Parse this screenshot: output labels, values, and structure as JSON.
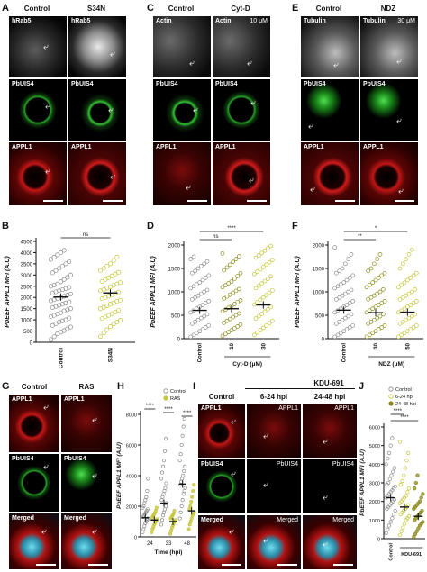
{
  "panels": {
    "A": {
      "letter": "A",
      "col1": "Control",
      "col2": "S34N",
      "rows": [
        [
          "hRab5",
          "hRab5"
        ],
        [
          "PbUIS4",
          "PbUIS4"
        ],
        [
          "APPL1",
          "APPL1"
        ]
      ]
    },
    "C": {
      "letter": "C",
      "col1": "Control",
      "col2": "Cyt-D",
      "conc": "10 μM",
      "rows": [
        [
          "Actin",
          "Actin"
        ],
        [
          "PbUIS4",
          "PbUIS4"
        ],
        [
          "APPL1",
          "APPL1"
        ]
      ]
    },
    "E": {
      "letter": "E",
      "col1": "Control",
      "col2": "NDZ",
      "conc": "30 μM",
      "rows": [
        [
          "Tubulin",
          "Tubulin"
        ],
        [
          "PbUIS4",
          "PbUIS4"
        ],
        [
          "APPL1",
          "APPL1"
        ]
      ]
    },
    "G": {
      "letter": "G",
      "col1": "Control",
      "col2": "RAS",
      "rows": [
        [
          "APPL1",
          "APPL1"
        ],
        [
          "PbUIS4",
          "PbUIS4"
        ],
        [
          "Merged",
          "Merged"
        ]
      ]
    },
    "I": {
      "letter": "I",
      "col1": "Control",
      "group": "KDU-691",
      "col2": "6-24 hpi",
      "col3": "24-48 hpi",
      "rows": [
        [
          "APPL1",
          "APPL1",
          "APPL1"
        ],
        [
          "PbUIS4",
          "PbUIS4",
          "PbUIS4"
        ],
        [
          "Merged",
          "Merged",
          "Merged"
        ]
      ]
    },
    "B": {
      "letter": "B"
    },
    "D": {
      "letter": "D"
    },
    "F": {
      "letter": "F"
    },
    "H": {
      "letter": "H"
    },
    "J": {
      "letter": "J"
    }
  },
  "colors": {
    "gray": "#8c8c8c",
    "olive": "#c6c63a",
    "dark_olive": "#8c8c1e",
    "black": "#111111"
  },
  "chart_data": [
    {
      "id": "B",
      "type": "scatter",
      "ylabel": "PbEEF APPL1 MFI (A.U)",
      "categories": [
        "Control",
        "S34N"
      ],
      "yticks": [
        0,
        500,
        1000,
        1500,
        2000,
        2500,
        3000,
        3500,
        4000,
        4500
      ],
      "ylim": [
        0,
        4500
      ],
      "means": [
        2020,
        2200
      ],
      "significance": [
        {
          "pair": [
            0,
            1
          ],
          "label": "ns"
        }
      ],
      "series": [
        {
          "values": [
            120,
            250,
            380,
            450,
            520,
            600,
            680,
            750,
            820,
            900,
            950,
            1000,
            1080,
            1150,
            1200,
            1260,
            1320,
            1400,
            1450,
            1500,
            1550,
            1600,
            1650,
            1700,
            1750,
            1800,
            1850,
            1900,
            1950,
            2000,
            2050,
            2100,
            2150,
            2200,
            2250,
            2300,
            2350,
            2400,
            2450,
            2500,
            2550,
            2600,
            2700,
            2800,
            2900,
            3000,
            3100,
            3200,
            3300,
            3400,
            3500,
            3600,
            3700,
            3800,
            3900,
            4000,
            4100
          ]
        },
        {
          "values": [
            260,
            420,
            560,
            700,
            820,
            900,
            980,
            1060,
            1130,
            1200,
            1280,
            1350,
            1420,
            1500,
            1560,
            1620,
            1700,
            1760,
            1820,
            1880,
            1940,
            2000,
            2060,
            2120,
            2180,
            2240,
            2300,
            2360,
            2420,
            2480,
            2540,
            2600,
            2660,
            2720,
            2800,
            2880,
            2960,
            3040,
            3120,
            3200,
            3300,
            3400,
            3500,
            3650,
            3800
          ]
        }
      ]
    },
    {
      "id": "D",
      "type": "scatter",
      "ylabel": "PbEEF APPL1 MFI (A.U)",
      "categories": [
        "Control",
        "10",
        "30"
      ],
      "group_label": "Cyt-D (μM)",
      "yticks": [
        0,
        500,
        1000,
        1500,
        2000
      ],
      "ylim": [
        0,
        2000
      ],
      "means": [
        605,
        640,
        720
      ],
      "significance": [
        {
          "pair": [
            0,
            1
          ],
          "label": "ns"
        },
        {
          "pair": [
            0,
            2
          ],
          "label": "****"
        }
      ],
      "series": [
        {
          "values": [
            40,
            80,
            120,
            160,
            200,
            240,
            280,
            320,
            360,
            400,
            440,
            480,
            520,
            560,
            600,
            640,
            680,
            720,
            760,
            800,
            840,
            880,
            920,
            960,
            1000,
            1040,
            1080,
            1120,
            1160,
            1200,
            1250,
            1300,
            1350,
            1400,
            1450,
            1500,
            1550,
            1600,
            1650,
            1700,
            1750
          ]
        },
        {
          "values": [
            60,
            100,
            140,
            180,
            220,
            260,
            300,
            340,
            380,
            420,
            460,
            500,
            540,
            580,
            620,
            660,
            700,
            740,
            780,
            820,
            860,
            900,
            940,
            980,
            1020,
            1060,
            1100,
            1140,
            1180,
            1220,
            1280,
            1340,
            1400,
            1460,
            1520,
            1580,
            1640,
            1700,
            1760,
            1820
          ]
        },
        {
          "values": [
            80,
            130,
            180,
            230,
            280,
            330,
            380,
            430,
            480,
            530,
            580,
            630,
            680,
            730,
            780,
            830,
            880,
            930,
            980,
            1030,
            1080,
            1130,
            1180,
            1230,
            1280,
            1330,
            1380,
            1430,
            1480,
            1530,
            1580,
            1630,
            1680,
            1730,
            1780,
            1830,
            1880,
            1930,
            1980
          ]
        }
      ]
    },
    {
      "id": "F",
      "type": "scatter",
      "ylabel": "PbEEF APPL1 MFI (A.U)",
      "categories": [
        "Control",
        "30",
        "50"
      ],
      "group_label": "NDZ (μM)",
      "yticks": [
        0,
        500,
        1000,
        1500,
        2000
      ],
      "ylim": [
        0,
        2000
      ],
      "means": [
        610,
        555,
        565
      ],
      "significance": [
        {
          "pair": [
            0,
            1
          ],
          "label": "**"
        },
        {
          "pair": [
            0,
            2
          ],
          "label": "*"
        }
      ],
      "series": [
        {
          "values": [
            40,
            80,
            120,
            160,
            200,
            240,
            280,
            320,
            360,
            400,
            440,
            480,
            520,
            560,
            600,
            640,
            680,
            720,
            760,
            800,
            840,
            880,
            920,
            960,
            1000,
            1040,
            1080,
            1120,
            1160,
            1200,
            1250,
            1300,
            1350,
            1400,
            1450,
            1500,
            1600,
            1700,
            1800,
            1950
          ]
        },
        {
          "values": [
            40,
            80,
            120,
            160,
            200,
            240,
            280,
            320,
            360,
            400,
            440,
            480,
            520,
            560,
            600,
            640,
            680,
            720,
            760,
            800,
            840,
            880,
            920,
            960,
            1000,
            1050,
            1100,
            1150,
            1200,
            1250,
            1300,
            1350,
            1400,
            1450,
            1500,
            1600,
            1700,
            1800
          ]
        },
        {
          "values": [
            40,
            80,
            120,
            160,
            200,
            240,
            280,
            320,
            360,
            400,
            440,
            480,
            520,
            560,
            600,
            640,
            680,
            720,
            760,
            800,
            840,
            880,
            920,
            960,
            1000,
            1050,
            1100,
            1150,
            1200,
            1250,
            1300,
            1350,
            1400,
            1500,
            1600,
            1700,
            1800,
            1900
          ]
        }
      ]
    },
    {
      "id": "H",
      "type": "scatter",
      "ylabel": "PbEEF APPL1 MFI (A.U)",
      "xlabel": "Time (hpi)",
      "categories": [
        "24",
        "33",
        "48"
      ],
      "legend": [
        "Control",
        "RAS"
      ],
      "yticks": [
        0,
        2000,
        4000,
        6000,
        8000
      ],
      "ylim": [
        0,
        8000
      ],
      "means": [
        [
          1250,
          1100
        ],
        [
          2200,
          1000
        ],
        [
          3450,
          1700
        ]
      ],
      "significance": [
        {
          "group": 0,
          "label": "****"
        },
        {
          "group": 1,
          "label": "****"
        },
        {
          "group": 2,
          "label": "****"
        }
      ],
      "series": [
        {
          "name": "Control",
          "values": [
            [
              300,
              500,
              700,
              900,
              1000,
              1100,
              1200,
              1300,
              1400,
              1500,
              1600,
              1700,
              1800,
              1900,
              2000,
              2200,
              2400,
              2600,
              3000,
              3800
            ],
            [
              800,
              1100,
              1400,
              1600,
              1800,
              2000,
              2200,
              2400,
              2600,
              2800,
              3000,
              3200,
              3500,
              3800,
              4200,
              4600,
              5000,
              5600,
              6400
            ],
            [
              1200,
              1600,
              2000,
              2400,
              2800,
              3000,
              3200,
              3400,
              3600,
              3800,
              4000,
              4300,
              4600,
              5000,
              5400,
              6000,
              6600,
              7200,
              7700
            ]
          ]
        },
        {
          "name": "RAS",
          "values": [
            [
              300,
              500,
              650,
              800,
              950,
              1050,
              1150,
              1250,
              1350,
              1450,
              1550,
              1700,
              1900
            ],
            [
              200,
              400,
              600,
              750,
              900,
              1000,
              1100,
              1200,
              1300,
              1400,
              1500,
              1700
            ],
            [
              500,
              800,
              1000,
              1200,
              1400,
              1500,
              1600,
              1800,
              2000,
              2300,
              2600,
              3000,
              3400
            ]
          ]
        }
      ]
    },
    {
      "id": "J",
      "type": "scatter",
      "ylabel": "PbEEF APPL1 MFI (A.U)",
      "categories": [
        "Control",
        "",
        ""
      ],
      "group_label": "KDU-691",
      "legend": [
        "Control",
        "6-24 hpi",
        "24-48 hpi"
      ],
      "yticks": [
        0,
        1000,
        2000,
        3000,
        4000,
        5000,
        6000
      ],
      "ylim": [
        0,
        6000
      ],
      "means": [
        2200,
        1700,
        1200
      ],
      "significance": [
        {
          "pair": [
            0,
            1
          ],
          "label": "****"
        },
        {
          "pair": [
            0,
            2
          ],
          "label": "****"
        }
      ],
      "series": [
        {
          "name": "Control",
          "values": [
            300,
            500,
            700,
            900,
            1100,
            1300,
            1500,
            1600,
            1700,
            1800,
            1900,
            2000,
            2100,
            2200,
            2300,
            2400,
            2500,
            2600,
            2700,
            2800,
            2900,
            3000,
            3200,
            3400,
            3600,
            3800,
            4000,
            4300,
            4600,
            5000,
            5400
          ]
        },
        {
          "name": "6-24 hpi",
          "values": [
            200,
            400,
            600,
            800,
            1000,
            1100,
            1200,
            1300,
            1400,
            1500,
            1600,
            1700,
            1800,
            1900,
            2000,
            2100,
            2200,
            2300,
            2500,
            2700,
            2900,
            3100,
            3400,
            3800,
            4200,
            4600,
            5200
          ]
        },
        {
          "name": "24-48 hpi",
          "values": [
            100,
            250,
            400,
            550,
            700,
            800,
            900,
            1000,
            1100,
            1200,
            1300,
            1400,
            1500,
            1600,
            1700,
            1800,
            1900,
            2000,
            2200,
            2400,
            2700,
            3000,
            3400
          ]
        }
      ]
    }
  ]
}
